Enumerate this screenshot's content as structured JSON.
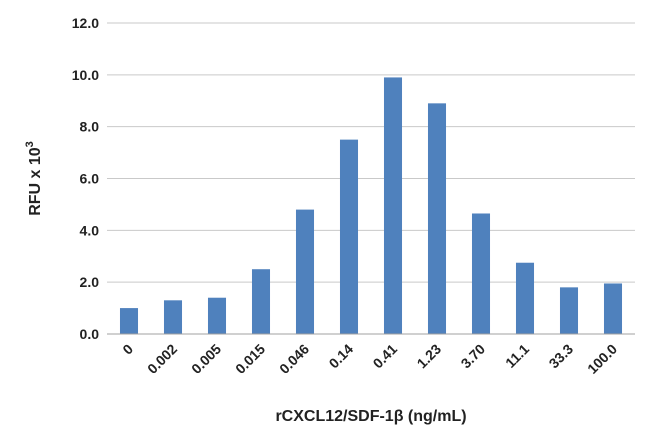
{
  "chart_data": {
    "type": "bar",
    "title": "",
    "xlabel": "rCXCL12/SDF-1β (ng/mL)",
    "ylabel": "RFU x 10",
    "ylabel_superscript": "3",
    "categories": [
      "0",
      "0.002",
      "0.005",
      "0.015",
      "0.046",
      "0.14",
      "0.41",
      "1.23",
      "3.70",
      "11.1",
      "33.3",
      "100.0"
    ],
    "values": [
      1.0,
      1.3,
      1.4,
      2.5,
      4.8,
      7.5,
      9.9,
      8.9,
      4.65,
      2.75,
      1.8,
      1.95
    ],
    "ylim": [
      0,
      12
    ],
    "yticks": [
      "0.0",
      "2.0",
      "4.0",
      "6.0",
      "8.0",
      "10.0",
      "12.0"
    ],
    "grid": true,
    "legend": "none",
    "bar_color": "#4f81bd"
  }
}
